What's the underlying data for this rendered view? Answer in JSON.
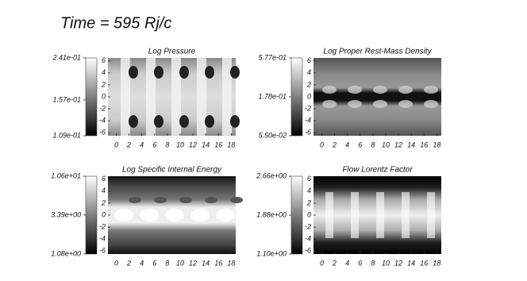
{
  "title": "Time = 595 Rj/c",
  "chart_data": [
    {
      "type": "heatmap",
      "title": "Log Pressure",
      "xlim": [
        -1.3,
        18.7
      ],
      "ylim": [
        -6.5,
        6.5
      ],
      "xticks": [
        0,
        2,
        4,
        6,
        8,
        10,
        12,
        14,
        16,
        18
      ],
      "yticks": [
        6,
        4,
        2,
        0,
        -2,
        -4,
        -6
      ],
      "colorbar_log": true,
      "colorbar_lim": [
        0.109,
        0.241
      ],
      "colorbar_ticks": [
        {
          "value": 0.241,
          "label": "2.41e-01"
        },
        {
          "value": 0.157,
          "label": "1.57e-01"
        },
        {
          "value": 0.109,
          "label": "1.09e-01"
        }
      ]
    },
    {
      "type": "heatmap",
      "title": "Log Proper Rest-Mass Density",
      "xlim": [
        -1.3,
        18.7
      ],
      "ylim": [
        -6.5,
        6.5
      ],
      "xticks": [
        0,
        2,
        4,
        6,
        8,
        10,
        12,
        14,
        16,
        18
      ],
      "yticks": [
        6,
        4,
        2,
        0,
        -2,
        -4,
        -6
      ],
      "colorbar_log": true,
      "colorbar_lim": [
        0.055,
        0.577
      ],
      "colorbar_ticks": [
        {
          "value": 0.577,
          "label": "5.77e-01"
        },
        {
          "value": 0.178,
          "label": "1.78e-01"
        },
        {
          "value": 0.055,
          "label": "5.50e-02"
        }
      ]
    },
    {
      "type": "heatmap",
      "title": "Log Specific Internal Energy",
      "xlim": [
        -1.3,
        18.7
      ],
      "ylim": [
        -6.5,
        6.5
      ],
      "xticks": [
        0,
        2,
        4,
        6,
        8,
        10,
        12,
        14,
        16,
        18
      ],
      "yticks": [
        6,
        4,
        2,
        0,
        -2,
        -4,
        -6
      ],
      "colorbar_log": true,
      "colorbar_lim": [
        1.08,
        10.6
      ],
      "colorbar_ticks": [
        {
          "value": 10.6,
          "label": "1.06e+01"
        },
        {
          "value": 3.39,
          "label": "3.39e+00"
        },
        {
          "value": 1.08,
          "label": "1.08e+00"
        }
      ]
    },
    {
      "type": "heatmap",
      "title": "Flow Lorentz Factor",
      "xlim": [
        -1.3,
        18.7
      ],
      "ylim": [
        -6.5,
        6.5
      ],
      "xticks": [
        0,
        2,
        4,
        6,
        8,
        10,
        12,
        14,
        16,
        18
      ],
      "yticks": [
        6,
        4,
        2,
        0,
        -2,
        -4,
        -6
      ],
      "colorbar_log": false,
      "colorbar_lim": [
        1.1,
        2.66
      ],
      "colorbar_ticks": [
        {
          "value": 2.66,
          "label": "2.66e+00"
        },
        {
          "value": 1.88,
          "label": "1.88e+00"
        },
        {
          "value": 1.1,
          "label": "1.10e+00"
        }
      ]
    }
  ]
}
